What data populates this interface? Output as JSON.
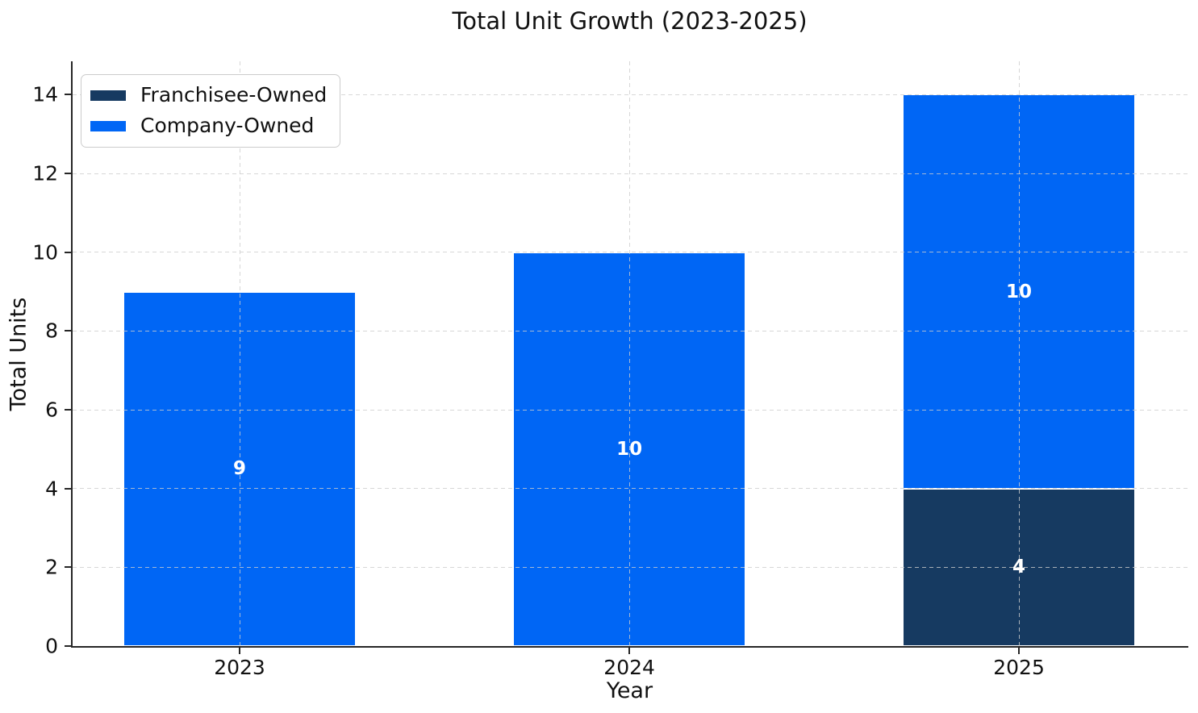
{
  "chart_data": {
    "type": "bar",
    "stacked": true,
    "title": "Total Unit Growth (2023-2025)",
    "xlabel": "Year",
    "ylabel": "Total Units",
    "categories": [
      "2023",
      "2024",
      "2025"
    ],
    "series": [
      {
        "name": "Franchisee-Owned",
        "color": "#163a61",
        "values": [
          0,
          0,
          4
        ]
      },
      {
        "name": "Company-Owned",
        "color": "#0066f5",
        "values": [
          9,
          10,
          10
        ]
      }
    ],
    "bar_labels": true,
    "yticks": [
      0,
      2,
      4,
      6,
      8,
      10,
      12,
      14
    ],
    "ylim": [
      0,
      14.85
    ],
    "grid": "dashed-both-axes-over-bars",
    "legend_position": "upper-left",
    "colors": {
      "background": "#ffffff",
      "axis": "#262626",
      "gridline": "#cdcdcd",
      "bar_edge": "#ffffff",
      "bar_label_text": "#ffffff",
      "legend_border": "#cccccc"
    }
  }
}
